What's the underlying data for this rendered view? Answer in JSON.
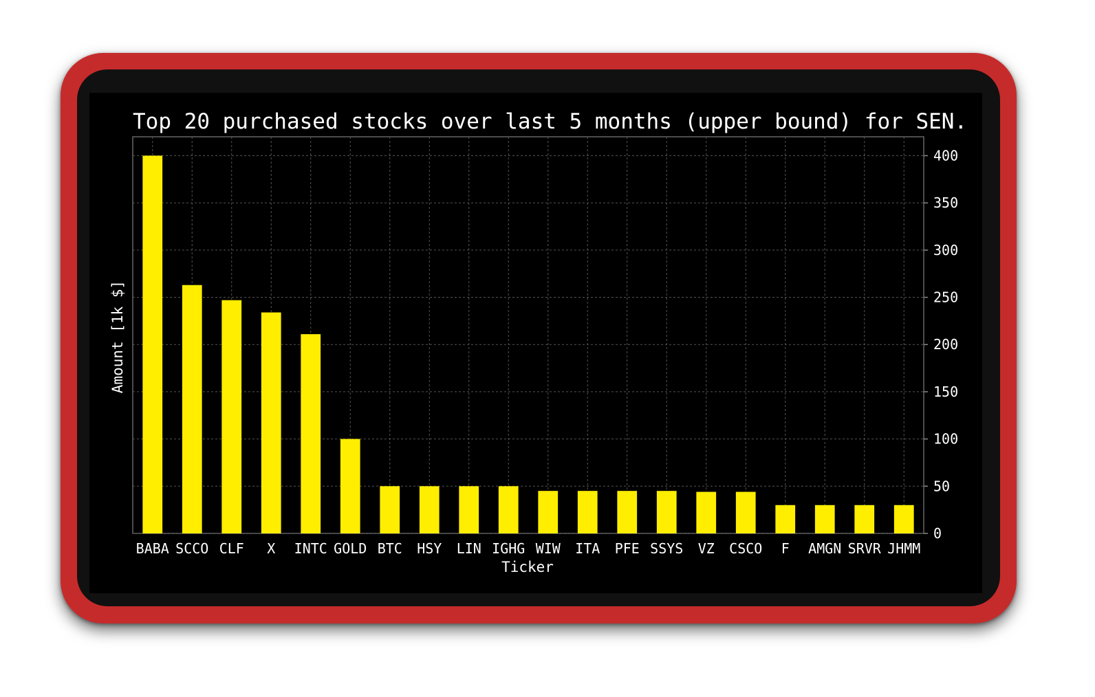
{
  "chart_data": {
    "type": "bar",
    "title": "Top 20 purchased stocks over last 5 months (upper bound) for SEN.",
    "xlabel": "Ticker",
    "ylabel": "Amount [1k $]",
    "categories": [
      "BABA",
      "SCCO",
      "CLF",
      "X",
      "INTC",
      "GOLD",
      "BTC",
      "HSY",
      "LIN",
      "IGHG",
      "WIW",
      "ITA",
      "PFE",
      "SSYS",
      "VZ",
      "CSCO",
      "F",
      "AMGN",
      "SRVR",
      "JHMM"
    ],
    "values": [
      400,
      263,
      247,
      234,
      211,
      100,
      50,
      50,
      50,
      50,
      45,
      45,
      45,
      45,
      44,
      44,
      30,
      30,
      30,
      30
    ],
    "ylim": [
      0,
      420
    ],
    "yticks": [
      "0",
      "50",
      "100",
      "150",
      "200",
      "250",
      "300",
      "350",
      "400"
    ],
    "y_axis_side": "right",
    "grid": true,
    "bar_color": "#ffee00",
    "background_color": "#000000",
    "grid_color": "#555555"
  }
}
